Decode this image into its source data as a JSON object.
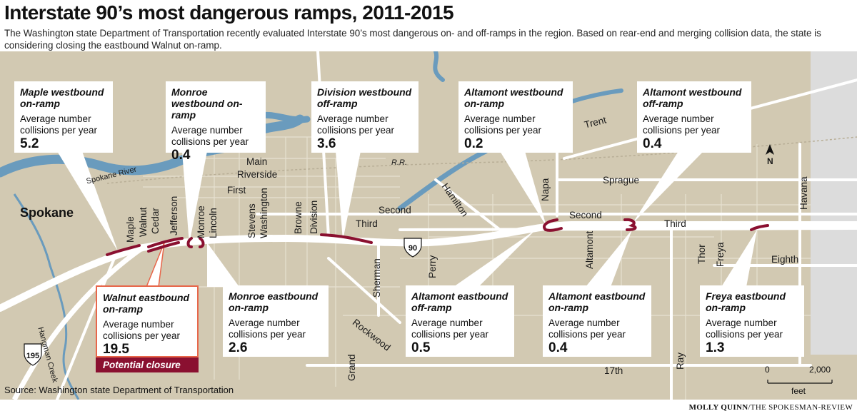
{
  "title": "Interstate 90’s most dangerous ramps, 2011-2015",
  "dek": "The Washington state Department of Transportation recently evaluated Interstate 90’s most dangerous on- and off-ramps in the region. Based on rear-end and merging collision data, the state is considering closing the eastbound Walnut on-ramp.",
  "metric_label": "Average number collisions per year",
  "ramps": [
    {
      "name": "Maple westbound on-ramp",
      "value": "5.2"
    },
    {
      "name": "Monroe westbound on-ramp",
      "value": "0.4"
    },
    {
      "name": "Division westbound off-ramp",
      "value": "3.6"
    },
    {
      "name": "Altamont westbound on-ramp",
      "value": "0.2"
    },
    {
      "name": "Altamont westbound off-ramp",
      "value": "0.4"
    },
    {
      "name": "Walnut eastbound on-ramp",
      "value": "19.5",
      "note": "Potential closure"
    },
    {
      "name": "Monroe eastbound on-ramp",
      "value": "2.6"
    },
    {
      "name": "Altamont eastbound off-ramp",
      "value": "0.5"
    },
    {
      "name": "Altamont eastbound on-ramp",
      "value": "0.4"
    },
    {
      "name": "Freya eastbound on-ramp",
      "value": "1.3"
    }
  ],
  "map_labels": {
    "city": "Spokane",
    "river": "Spokane River",
    "creek": "Hangman Creek",
    "rr": "R.R.",
    "north": "N",
    "i90": "90",
    "us195": "195",
    "streets": {
      "main": "Main",
      "riverside": "Riverside",
      "first": "First",
      "second": "Second",
      "third": "Third",
      "second_east": "Second",
      "third_east": "Third",
      "sprague": "Sprague",
      "trent": "Trent",
      "eighth": "Eighth",
      "seventeenth": "17th",
      "rockwood": "Rockwood",
      "grand": "Grand",
      "maple": "Maple",
      "walnut": "Walnut",
      "cedar": "Cedar",
      "jefferson": "Jefferson",
      "monroe": "Monroe",
      "lincoln": "Lincoln",
      "stevens": "Stevens",
      "washington": "Washington",
      "browne": "Browne",
      "division": "Division",
      "hamilton": "Hamilton",
      "sherman": "Sherman",
      "perry": "Perry",
      "napa": "Napa",
      "altamont": "Altamont",
      "thor": "Thor",
      "freya": "Freya",
      "ray": "Ray",
      "havana": "Havana"
    },
    "scale": {
      "zero": "0",
      "max": "2,000",
      "unit": "feet"
    }
  },
  "source": "Source: Washington state Department of Transportation",
  "credit": {
    "name": "MOLLY QUINN",
    "outlet": "/THE SPOKESMAN-REVIEW"
  },
  "colors": {
    "ramp": "#8a1030",
    "highlight": "#e8664a",
    "water": "#6a9bbd",
    "land": "#d2c9b2",
    "road": "#ffffff"
  }
}
